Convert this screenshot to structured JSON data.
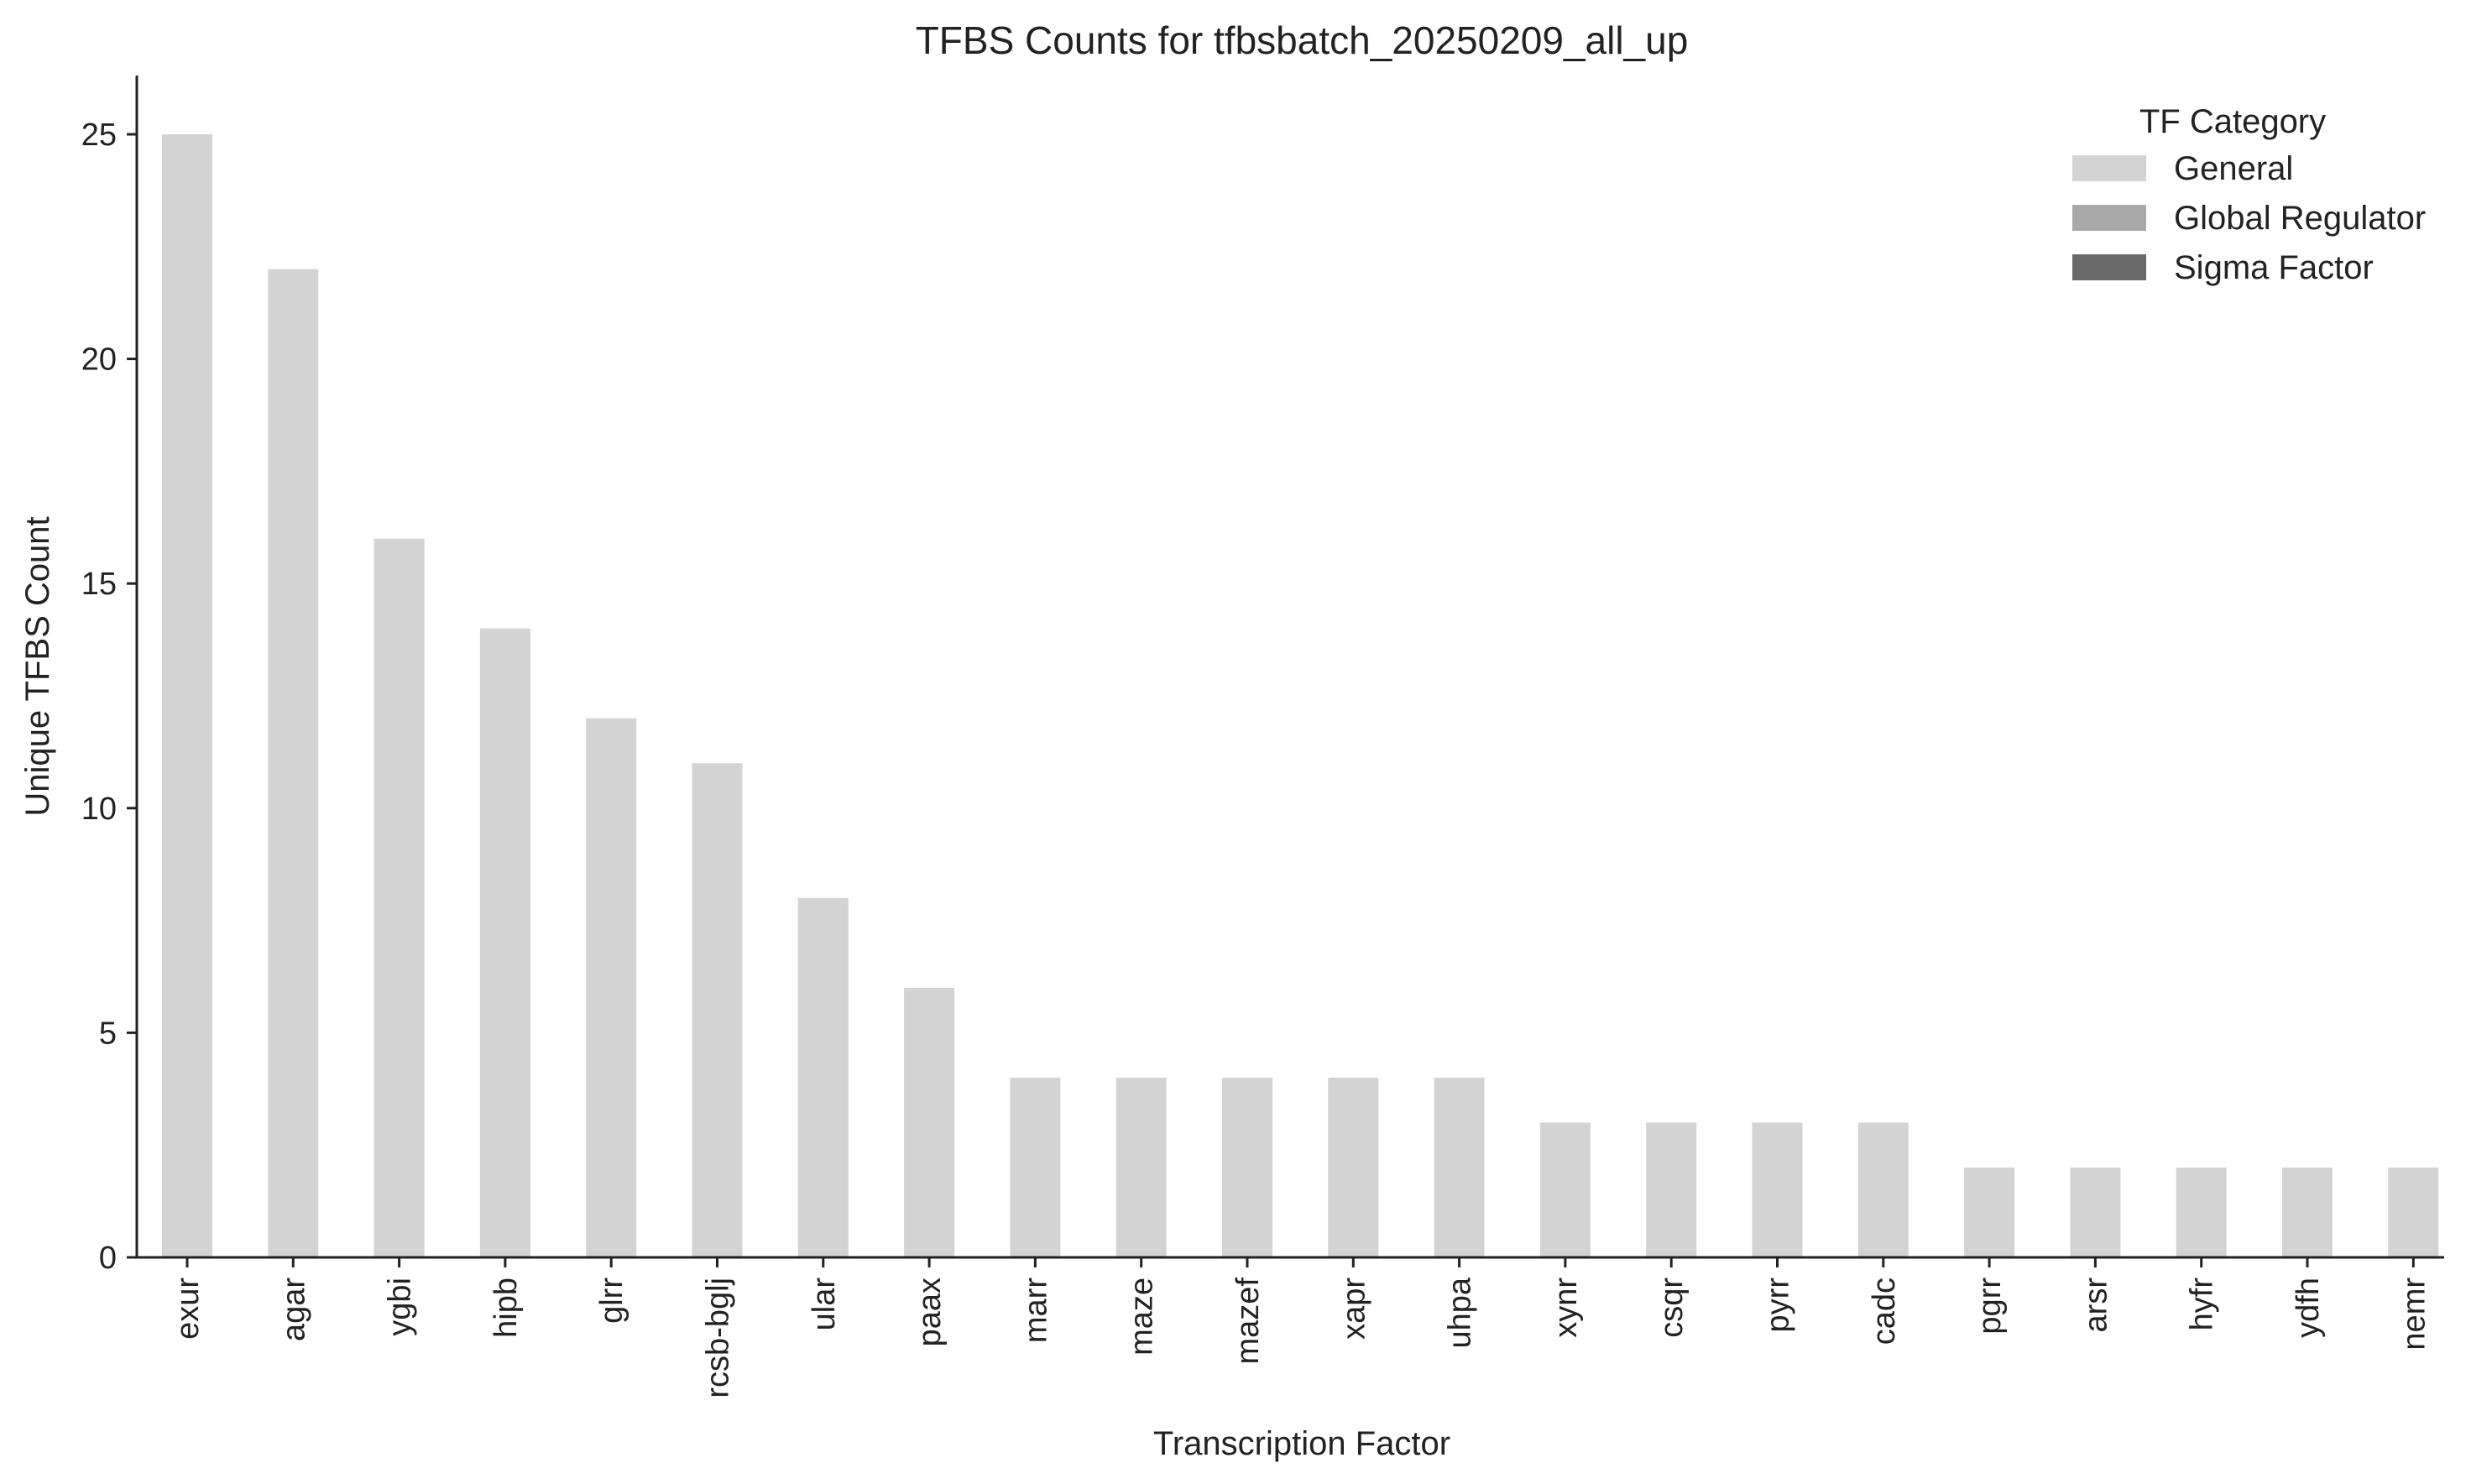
{
  "chart_data": {
    "type": "bar",
    "title": "TFBS Counts for tfbsbatch_20250209_all_up",
    "xlabel": "Transcription Factor",
    "ylabel": "Unique TFBS Count",
    "ylim": [
      0,
      26.25
    ],
    "yticks": [
      "0",
      "5",
      "10",
      "15",
      "20",
      "25"
    ],
    "categories": [
      "exur",
      "agar",
      "ygbi",
      "hipb",
      "glrr",
      "rcsb-bglj",
      "ular",
      "paax",
      "marr",
      "maze",
      "mazef",
      "xapr",
      "uhpa",
      "xynr",
      "csqr",
      "pyrr",
      "cadc",
      "pgrr",
      "arsr",
      "hyfr",
      "ydfh",
      "nemr"
    ],
    "values": [
      25,
      22,
      16,
      14,
      12,
      11,
      8,
      6,
      4,
      4,
      4,
      4,
      4,
      3,
      3,
      3,
      3,
      2,
      2,
      2,
      2,
      2
    ],
    "bar_category": "General",
    "legend": {
      "title": "TF Category",
      "position": "top-right",
      "items": [
        {
          "label": "General",
          "color": "#d3d3d3"
        },
        {
          "label": "Global Regulator",
          "color": "#a9a9a9"
        },
        {
          "label": "Sigma Factor",
          "color": "#696969"
        }
      ]
    },
    "grid": false,
    "colors": {
      "axis": "#222222",
      "bar": "#d3d3d3"
    }
  }
}
